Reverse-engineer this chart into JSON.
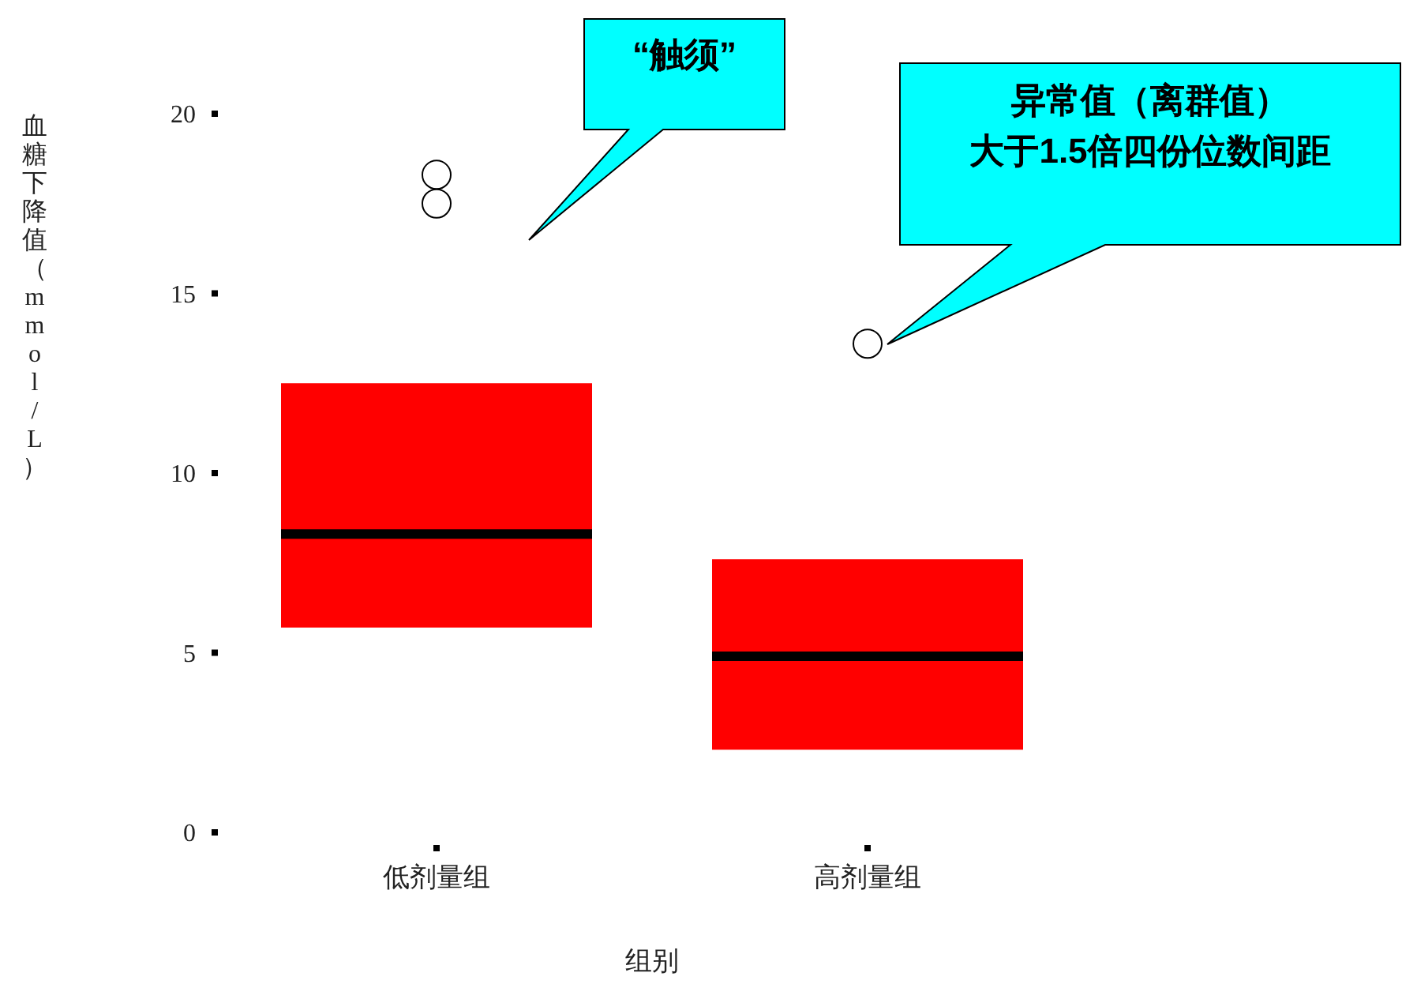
{
  "chart_data": {
    "type": "box",
    "xlabel": "组别",
    "ylabel": "血糖下降值（mmol/L）",
    "categories": [
      "低剂量组",
      "高剂量组"
    ],
    "boxes": [
      {
        "q1": 5.7,
        "median": 8.3,
        "q3": 12.5,
        "outliers": [
          18.3,
          17.5
        ]
      },
      {
        "q1": 2.3,
        "median": 4.9,
        "q3": 7.6,
        "outliers": [
          13.6
        ]
      }
    ],
    "color": "#ff0000",
    "ylim": [
      0,
      20
    ],
    "yticks": [
      0,
      5,
      10,
      15,
      20
    ],
    "grid": false,
    "annotations": [
      "“触须”",
      "异常值（离群值）",
      "大于1.5倍四份位数间距"
    ]
  }
}
